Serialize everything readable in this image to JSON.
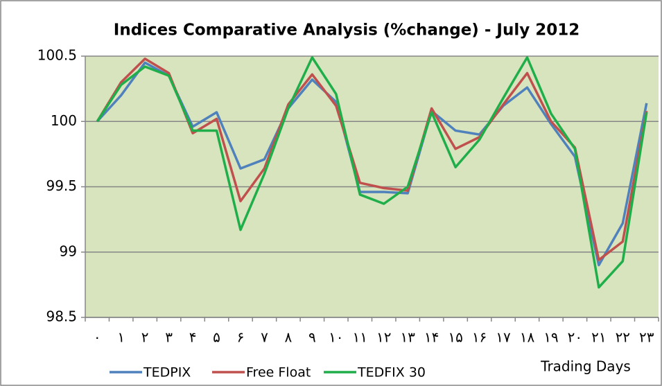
{
  "chart_data": {
    "type": "line",
    "title": "Indices Comparative Analysis (%change) - July 2012",
    "x_label": "Trading Days",
    "categories": [
      "۰",
      "۱",
      "۲",
      "۳",
      "۴",
      "۵",
      "۶",
      "۷",
      "۸",
      "۹",
      "۱۰",
      "۱۱",
      "۱۲",
      "۱۳",
      "۱۴",
      "۱۵",
      "۱۶",
      "۱۷",
      "۱۸",
      "۱۹",
      "۲۰",
      "۲۱",
      "۲۲",
      "۲۳"
    ],
    "series": [
      {
        "name": "TEDPIX",
        "color": "#4f81bd",
        "values": [
          100,
          100.2,
          100.45,
          100.35,
          99.96,
          100.07,
          99.64,
          99.71,
          100.1,
          100.32,
          100.15,
          99.46,
          99.46,
          99.45,
          100.08,
          99.93,
          99.9,
          100.12,
          100.26,
          99.98,
          99.73,
          98.9,
          99.22,
          100.14
        ]
      },
      {
        "name": "Free Float",
        "color": "#c0504d",
        "values": [
          100,
          100.3,
          100.48,
          100.37,
          99.91,
          100.02,
          99.39,
          99.64,
          100.13,
          100.36,
          100.12,
          99.53,
          99.49,
          99.47,
          100.1,
          99.79,
          99.88,
          100.13,
          100.37,
          100.0,
          99.8,
          98.94,
          99.08,
          100.08
        ]
      },
      {
        "name": "TEDFIX 30",
        "color": "#1fae4a",
        "values": [
          100,
          100.28,
          100.42,
          100.35,
          99.93,
          99.93,
          99.17,
          99.6,
          100.1,
          100.49,
          100.21,
          99.44,
          99.37,
          99.5,
          100.07,
          99.65,
          99.86,
          100.18,
          100.49,
          100.06,
          99.79,
          98.73,
          98.93,
          100.07
        ]
      }
    ],
    "ylim": [
      98.5,
      100.5
    ],
    "yticks": [
      98.5,
      99,
      99.5,
      100,
      100.5
    ],
    "grid": true,
    "legend": "bottom"
  }
}
